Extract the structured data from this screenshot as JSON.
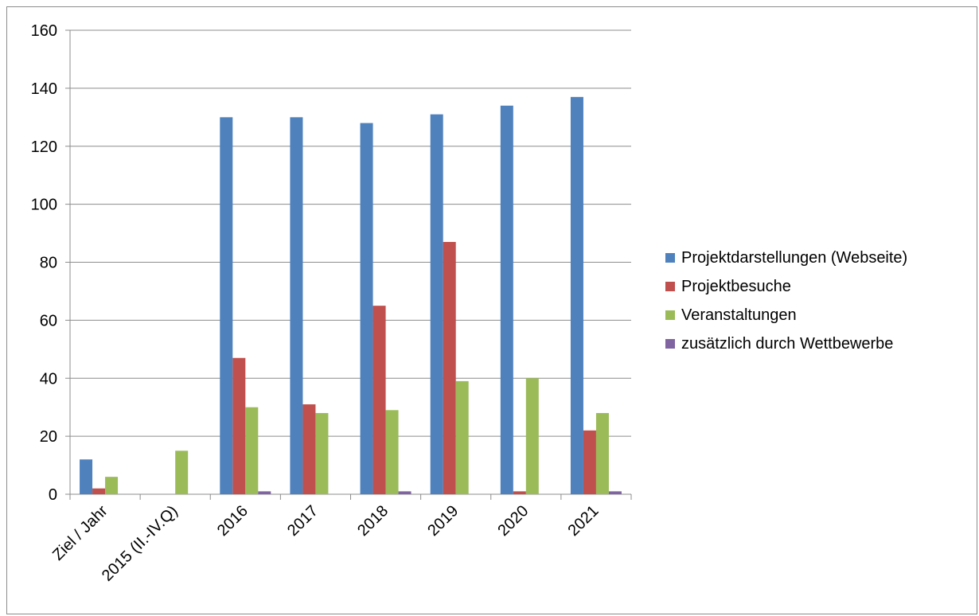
{
  "chart_data": {
    "type": "bar",
    "title": "",
    "xlabel": "",
    "ylabel": "",
    "ylim": [
      0,
      160
    ],
    "yticks": [
      0,
      20,
      40,
      60,
      80,
      100,
      120,
      140,
      160
    ],
    "grid": true,
    "legend_position": "right",
    "categories": [
      "Ziel / Jahr",
      "2015 (II.-IV.Q)",
      "2016",
      "2017",
      "2018",
      "2019",
      "2020",
      "2021"
    ],
    "series": [
      {
        "name": "Projektdarstellungen (Webseite)",
        "color": "#4F81BD",
        "values": [
          12,
          0,
          130,
          130,
          128,
          131,
          134,
          137
        ]
      },
      {
        "name": "Projektbesuche",
        "color": "#C0504D",
        "values": [
          2,
          0,
          47,
          31,
          65,
          87,
          1,
          22
        ]
      },
      {
        "name": "Veranstaltungen",
        "color": "#9BBB59",
        "values": [
          6,
          15,
          30,
          28,
          29,
          39,
          40,
          28
        ]
      },
      {
        "name": "zusätzlich durch Wettbewerbe",
        "color": "#8064A2",
        "values": [
          0,
          0,
          1,
          0,
          1,
          0,
          0,
          1
        ]
      }
    ]
  }
}
